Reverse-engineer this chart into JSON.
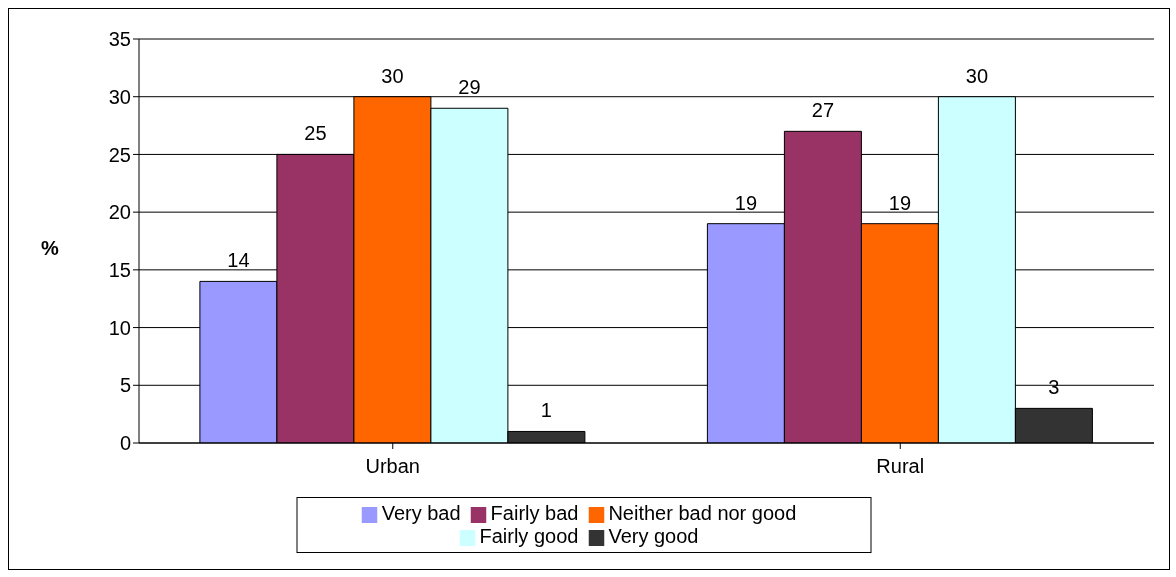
{
  "chart_data": {
    "type": "bar",
    "ylabel": "%",
    "categories": [
      "Urban",
      "Rural"
    ],
    "series": [
      {
        "name": "Very bad",
        "color": "#9999ff",
        "values": [
          14,
          19
        ]
      },
      {
        "name": "Fairly bad",
        "color": "#993366",
        "values": [
          25,
          27
        ]
      },
      {
        "name": "Neither bad nor good",
        "color": "#ff6600",
        "values": [
          30,
          19
        ]
      },
      {
        "name": "Fairly good",
        "color": "#ccffff",
        "values": [
          29,
          30
        ]
      },
      {
        "name": "Very good",
        "color": "#333333",
        "values": [
          1,
          3
        ]
      }
    ],
    "ylim": [
      0,
      35
    ],
    "yticks": [
      0,
      5,
      10,
      15,
      20,
      25,
      30,
      35
    ],
    "grid": "y",
    "legend": "bottom",
    "data_labels": true
  }
}
